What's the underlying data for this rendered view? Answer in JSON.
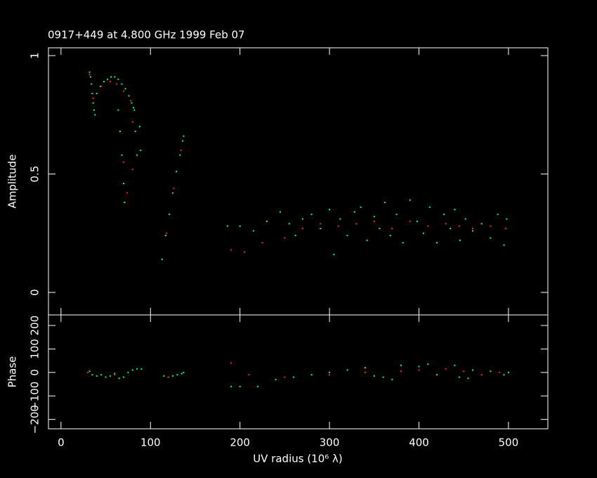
{
  "chart_data": [
    {
      "type": "scatter",
      "title": "0917+449 at 4.800 GHz 1999 Feb 07",
      "y_label": "Amplitude",
      "xlim": [
        -14,
        544
      ],
      "xticks": [
        0,
        100,
        200,
        300,
        400,
        500
      ],
      "ylim": [
        -0.095,
        1.033
      ],
      "yticks": [
        0,
        0.5,
        1
      ],
      "series": [
        {
          "color": "#00ff7f",
          "x": [
            32,
            33,
            34,
            35,
            36,
            37,
            38,
            40,
            44,
            48,
            52,
            56,
            60,
            64,
            68,
            72,
            76,
            79,
            81,
            64,
            66,
            68,
            70,
            71,
            82,
            83,
            85,
            88,
            89,
            113,
            117,
            121,
            125,
            129,
            133,
            136,
            137,
            186,
            200,
            215,
            230,
            245,
            255,
            262,
            270,
            280,
            290,
            300,
            305,
            312,
            320,
            328,
            335,
            342,
            350,
            356,
            362,
            368,
            375,
            382,
            390,
            398,
            405,
            412,
            420,
            428,
            435,
            440,
            446,
            452,
            460,
            470,
            480,
            488,
            495,
            498
          ],
          "values": [
            0.93,
            0.91,
            0.88,
            0.84,
            0.8,
            0.77,
            0.75,
            0.84,
            0.87,
            0.89,
            0.9,
            0.91,
            0.91,
            0.9,
            0.88,
            0.86,
            0.83,
            0.8,
            0.78,
            0.77,
            0.68,
            0.58,
            0.46,
            0.38,
            0.77,
            0.68,
            0.58,
            0.7,
            0.6,
            0.14,
            0.24,
            0.33,
            0.42,
            0.51,
            0.58,
            0.64,
            0.66,
            0.28,
            0.28,
            0.26,
            0.3,
            0.34,
            0.29,
            0.24,
            0.31,
            0.33,
            0.27,
            0.35,
            0.16,
            0.31,
            0.24,
            0.34,
            0.36,
            0.22,
            0.32,
            0.27,
            0.38,
            0.24,
            0.33,
            0.21,
            0.39,
            0.3,
            0.25,
            0.36,
            0.21,
            0.33,
            0.27,
            0.35,
            0.22,
            0.31,
            0.26,
            0.29,
            0.23,
            0.33,
            0.2,
            0.31
          ]
        },
        {
          "color": "#ff2020",
          "x": [
            32,
            36,
            45,
            55,
            62,
            70,
            78,
            80,
            70,
            74,
            80,
            118,
            126,
            134,
            190,
            205,
            225,
            250,
            270,
            290,
            310,
            330,
            350,
            370,
            390,
            410,
            430,
            445,
            460,
            480,
            497
          ],
          "values": [
            0.92,
            0.82,
            0.87,
            0.89,
            0.88,
            0.85,
            0.81,
            0.72,
            0.55,
            0.42,
            0.52,
            0.25,
            0.44,
            0.6,
            0.18,
            0.17,
            0.21,
            0.23,
            0.27,
            0.29,
            0.28,
            0.29,
            0.3,
            0.27,
            0.3,
            0.28,
            0.29,
            0.28,
            0.27,
            0.28,
            0.27
          ]
        }
      ]
    },
    {
      "type": "scatter",
      "y_label": "Phase",
      "x_label": "UV radius  (10⁶ λ)",
      "xlim": [
        -14,
        544
      ],
      "xticks": [
        0,
        100,
        200,
        300,
        400,
        500
      ],
      "ylim": [
        -240,
        245
      ],
      "yticks": [
        {
          "value": -200,
          "label": "−200"
        },
        {
          "value": -100,
          "label": "−100"
        },
        0,
        100,
        200
      ],
      "series": [
        {
          "color": "#00ff7f",
          "x": [
            32,
            35,
            40,
            45,
            50,
            55,
            60,
            65,
            70,
            75,
            80,
            85,
            90,
            115,
            120,
            125,
            130,
            135,
            137,
            190,
            200,
            220,
            240,
            260,
            280,
            300,
            320,
            340,
            360,
            370,
            380,
            400,
            420,
            440,
            445,
            460,
            480,
            495,
            500,
            350,
            410,
            455
          ],
          "values": [
            5,
            -10,
            -15,
            -10,
            -20,
            -15,
            -5,
            -25,
            -20,
            0,
            10,
            15,
            15,
            -15,
            -20,
            -15,
            -10,
            -5,
            0,
            -60,
            -60,
            -60,
            -30,
            -20,
            -10,
            0,
            10,
            20,
            -20,
            -30,
            30,
            25,
            -10,
            30,
            -20,
            10,
            5,
            -10,
            0,
            -15,
            35,
            -25
          ]
        },
        {
          "color": "#ff2020",
          "x": [
            30,
            60,
            120,
            190,
            210,
            250,
            300,
            340,
            380,
            400,
            430,
            450,
            470,
            490
          ],
          "values": [
            0,
            -10,
            -20,
            40,
            -10,
            -20,
            -10,
            0,
            5,
            10,
            15,
            5,
            -10,
            0
          ]
        }
      ]
    }
  ]
}
